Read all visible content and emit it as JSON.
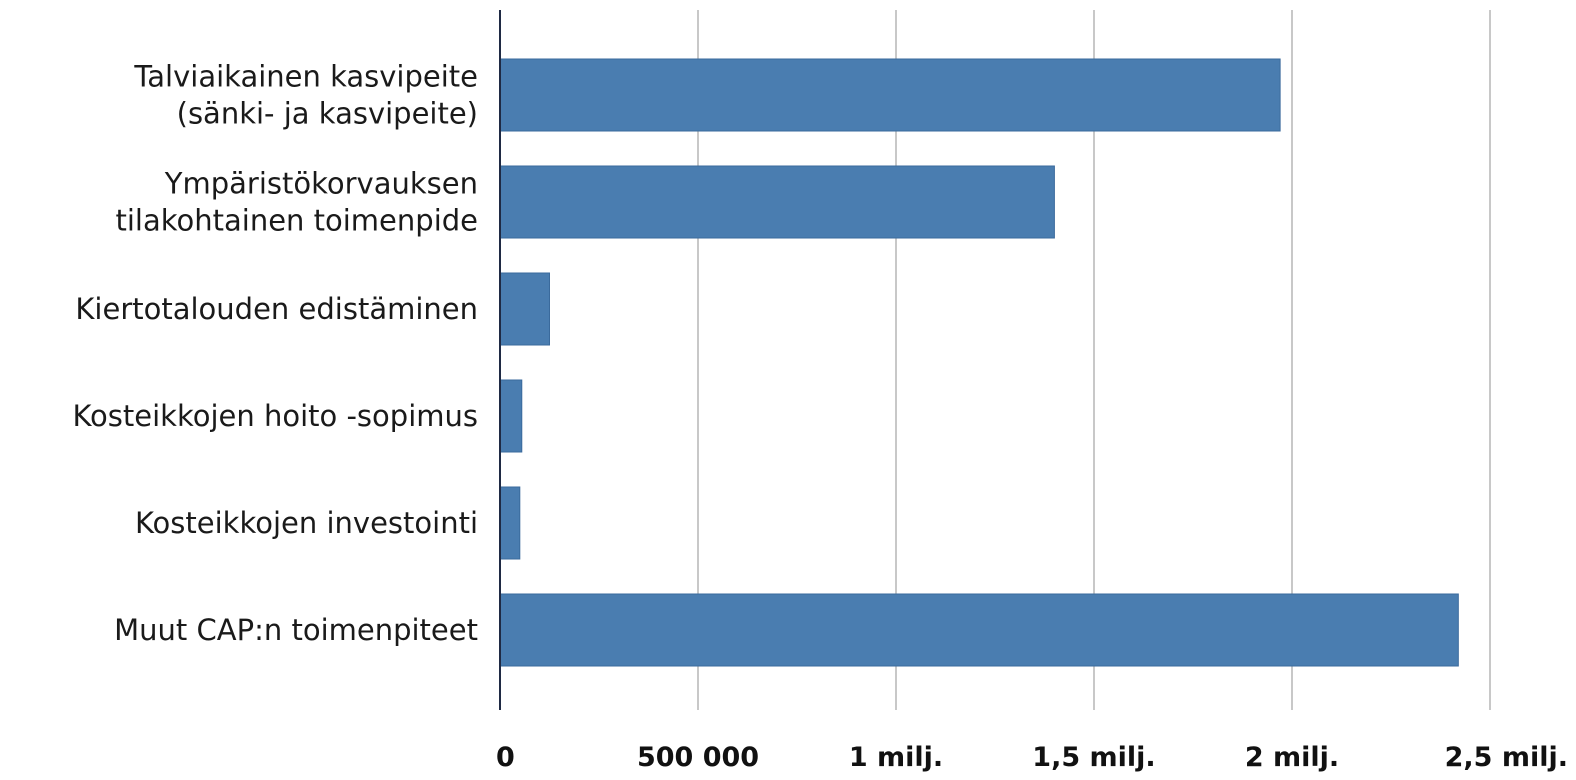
{
  "chart_data": {
    "type": "bar",
    "orientation": "horizontal",
    "categories": [
      [
        "Talviaikainen kasvipeite",
        "(sänki- ja kasvipeite)"
      ],
      [
        "Ympäristökorvauksen",
        "tilakohtainen toimenpide"
      ],
      [
        "Kiertotalouden edistäminen"
      ],
      [
        "Kosteikkojen hoito -sopimus"
      ],
      [
        "Kosteikkojen investointi"
      ],
      [
        "Muut CAP:n toimenpiteet"
      ]
    ],
    "values": [
      1970000,
      1400000,
      125000,
      55000,
      50000,
      2420000
    ],
    "xlim": [
      0,
      2500000
    ],
    "xticks": [
      0,
      500000,
      1000000,
      1500000,
      2000000,
      2500000
    ],
    "xtick_labels": [
      "0",
      "500 000",
      "1 milj.",
      "1,5 milj.",
      "2 milj.",
      "2,5 milj."
    ],
    "grid": true,
    "bar_color": "#4a7db0",
    "title": "",
    "xlabel": "",
    "ylabel": ""
  }
}
